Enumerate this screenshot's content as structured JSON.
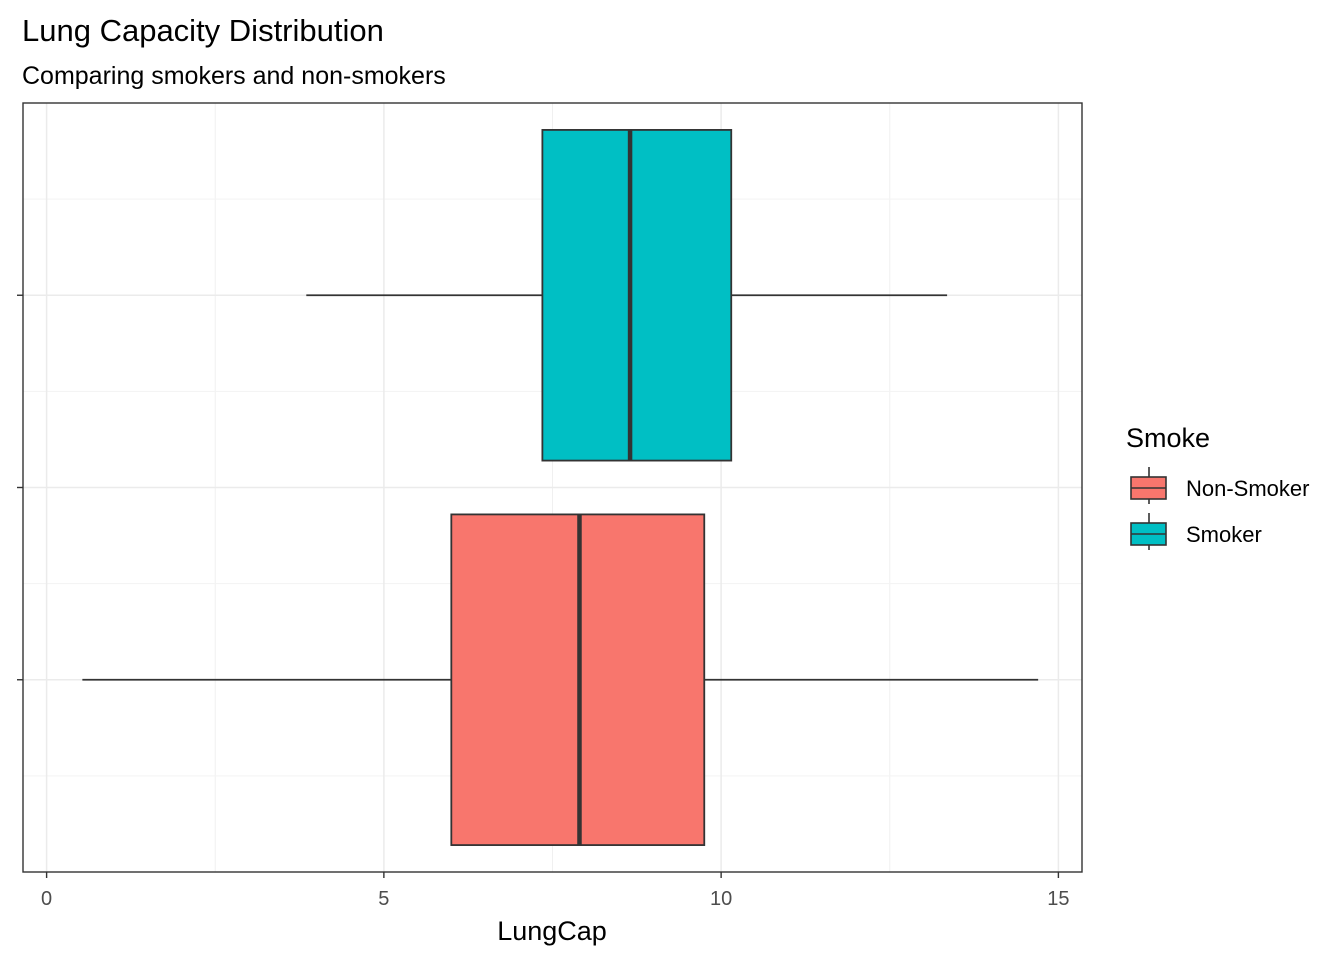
{
  "chart_data": {
    "type": "boxplot",
    "orientation": "horizontal",
    "title": "Lung Capacity Distribution",
    "subtitle": "Comparing smokers and non-smokers",
    "xlabel": "LungCap",
    "ylabel": "",
    "xlim": [
      -0.35,
      15.35
    ],
    "xticks": [
      0,
      5,
      10,
      15
    ],
    "grid": true,
    "legend": {
      "title": "Smoke",
      "position": "right",
      "entries": [
        {
          "label": "Non-Smoker",
          "color": "#F8766D"
        },
        {
          "label": "Smoker",
          "color": "#00BFC4"
        }
      ]
    },
    "series": [
      {
        "group": "Non-Smoker",
        "color": "#F8766D",
        "whisker_low": 0.53,
        "q1": 6.0,
        "median": 7.9,
        "q3": 9.75,
        "whisker_high": 14.7
      },
      {
        "group": "Smoker",
        "color": "#00BFC4",
        "whisker_low": 3.85,
        "q1": 7.35,
        "median": 8.65,
        "q3": 10.15,
        "whisker_high": 13.35
      }
    ]
  }
}
